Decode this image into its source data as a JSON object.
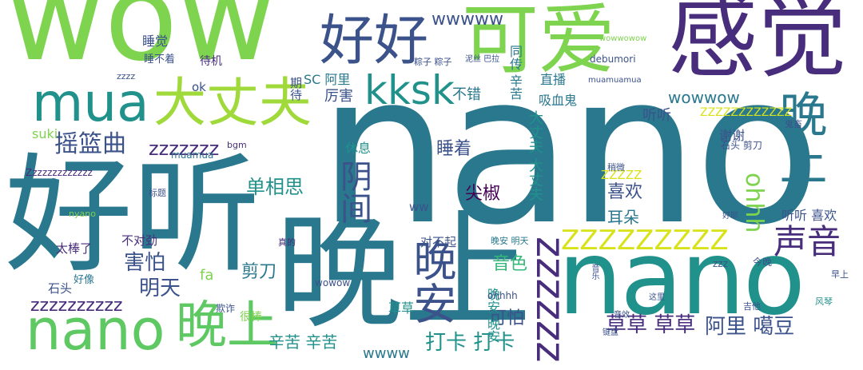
{
  "palette": {
    "light_green": "#7ed34f",
    "yellow_green": "#9fda3a",
    "yellow": "#d8e219",
    "teal": "#2a788e",
    "teal_green": "#21918c",
    "blue": "#3b528b",
    "purple": "#472d7b",
    "dark_purple": "#440154",
    "background": "#ffffff"
  },
  "words": [
    "wow",
    "nano",
    "好听",
    "晚上",
    "nano",
    "感觉",
    "可爱",
    "好好",
    "mua",
    "大丈夫",
    "kksk",
    "晚上",
    "nano",
    "声音",
    "晚上",
    "晚安",
    "ZZZZZZZZZ",
    "zzzzzz",
    "阴间",
    "ohhh",
    "ZZZZZZZZZZZZ",
    "nano",
    "摇篮曲",
    "zzzzzzz",
    "害怕",
    "明天",
    "草草 草草",
    "阿里 噶豆",
    "打卡 打卡",
    "辛苦 辛苦",
    "zzzzzzzzzz",
    "单相思",
    "尖椒",
    "喜欢",
    "耳朵",
    "音色",
    "剪刀",
    "可怕",
    "睡着",
    "休息",
    "厉害",
    "不错",
    "wwwww",
    "wowwow",
    "听听",
    "谢谢",
    "直播",
    "吸血鬼",
    "同传 辛苦",
    "睡觉",
    "睡不着",
    "待机",
    "ok",
    "SC 阿里",
    "粽子 粽子",
    "泥丝 巴拉",
    "wowwowow",
    "debumori",
    "muamuamua",
    "大丈夫 大丈夫",
    "晚安 晚安",
    "草草",
    "对不起",
    "不对劲",
    "太棒了",
    "好像",
    "石头",
    "fa",
    "suki",
    "bgm",
    "zzzz",
    "期待",
    "mua",
    "ww",
    "wwww",
    "听听 喜欢",
    "ZZZZZ",
    "稍微",
    "石头 剪刀",
    "鬼畜",
    "欺诈",
    "很棒",
    "晚安 明天",
    "zzz",
    "今晚",
    "吉他",
    "风琴",
    "早上",
    "这里",
    "音效",
    "音乐",
    "键盘",
    "ohhhh",
    "wowow",
    "真的",
    "Zzzzzzzzzzzzz",
    "muamua",
    "标题",
    "nyano",
    "好耶"
  ]
}
